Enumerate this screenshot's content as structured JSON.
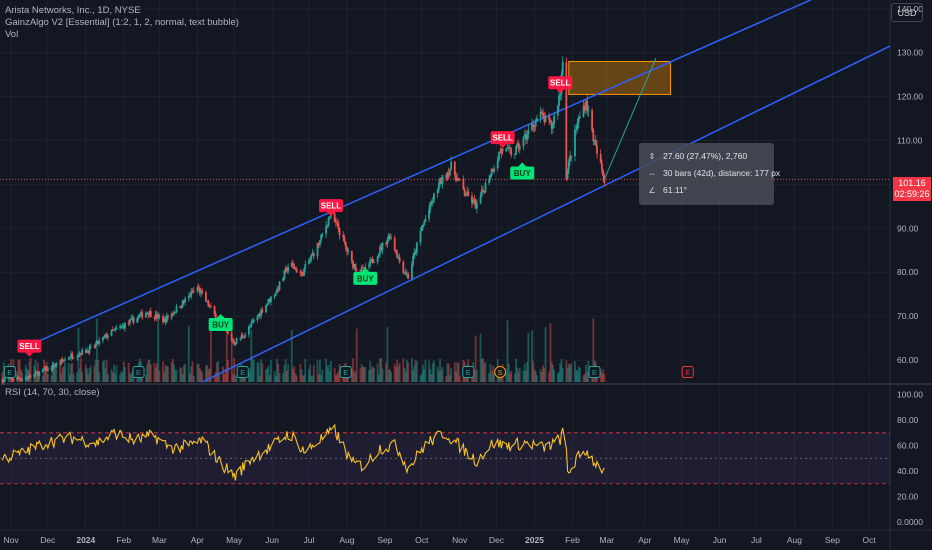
{
  "legend": {
    "title": "Arista Networks, Inc., 1D, NYSE",
    "indicator": "GainzAlgo V2 [Essential] (1:2, 1, 2, normal, text bubble)",
    "volume": "Vol",
    "rsi": "RSI (14, 70, 30, close)"
  },
  "currency_button": "USD",
  "price_tag": {
    "price": "101.16",
    "countdown": "02:59:26",
    "color": "#f23645"
  },
  "measure": {
    "price_change": "27.60 (27.47%), 2,760",
    "bars": "30 bars (42d), distance: 177 px",
    "angle": "61.11°"
  },
  "colors": {
    "background": "#131722",
    "up": "#26a69a",
    "down": "#ef5350",
    "channel": "#2962ff",
    "rsi_line": "#f7c325",
    "sell": "#ff1744",
    "buy": "#00e676"
  },
  "chart_data": [
    {
      "type": "candlestick",
      "y_axis": {
        "ticks": [
          "60.00",
          "70.00",
          "80.00",
          "90.00",
          "100.00",
          "110.00",
          "120.00",
          "130.00",
          "140.00"
        ],
        "ylim": [
          55,
          142
        ]
      },
      "x_axis": {
        "ticks": [
          "Nov",
          "Dec",
          "2024",
          "Feb",
          "Mar",
          "Apr",
          "May",
          "Jun",
          "Jul",
          "Aug",
          "Sep",
          "Oct",
          "Nov",
          "Dec",
          "2025",
          "Feb",
          "Mar",
          "Apr",
          "May",
          "Jun",
          "Jul",
          "Aug",
          "Sep",
          "Oct"
        ],
        "range": [
          "2023-10-23",
          "2025-10-18"
        ]
      },
      "close_path": [
        [
          "2023-10-25",
          55.5
        ],
        [
          "2023-11-15",
          56.0
        ],
        [
          "2023-12-05",
          58.5
        ],
        [
          "2023-12-20",
          61.0
        ],
        [
          "2024-01-05",
          62.5
        ],
        [
          "2024-01-20",
          66.0
        ],
        [
          "2024-02-05",
          68.5
        ],
        [
          "2024-02-20",
          71.0
        ],
        [
          "2024-03-05",
          69.0
        ],
        [
          "2024-03-20",
          73.0
        ],
        [
          "2024-04-01",
          76.5
        ],
        [
          "2024-04-10",
          72.5
        ],
        [
          "2024-04-20",
          68.0
        ],
        [
          "2024-05-01",
          64.0
        ],
        [
          "2024-05-10",
          66.0
        ],
        [
          "2024-05-25",
          72.0
        ],
        [
          "2024-06-05",
          76.0
        ],
        [
          "2024-06-15",
          82.0
        ],
        [
          "2024-06-25",
          79.5
        ],
        [
          "2024-07-10",
          87.0
        ],
        [
          "2024-07-18",
          93.0
        ],
        [
          "2024-07-25",
          90.0
        ],
        [
          "2024-08-05",
          82.0
        ],
        [
          "2024-08-15",
          80.0
        ],
        [
          "2024-08-25",
          84.0
        ],
        [
          "2024-09-05",
          88.5
        ],
        [
          "2024-09-15",
          81.0
        ],
        [
          "2024-09-20",
          79.0
        ],
        [
          "2024-10-01",
          90.0
        ],
        [
          "2024-10-15",
          100.0
        ],
        [
          "2024-10-25",
          104.0
        ],
        [
          "2024-11-05",
          98.0
        ],
        [
          "2024-11-15",
          95.0
        ],
        [
          "2024-11-25",
          102.0
        ],
        [
          "2024-12-05",
          108.0
        ],
        [
          "2024-12-15",
          107.0
        ],
        [
          "2024-12-25",
          111.0
        ],
        [
          "2025-01-05",
          116.0
        ],
        [
          "2025-01-15",
          113.0
        ],
        [
          "2025-01-22",
          121.0
        ],
        [
          "2025-01-25",
          133.0
        ],
        [
          "2025-01-27",
          102.0
        ],
        [
          "2025-02-05",
          114.0
        ],
        [
          "2025-02-12",
          119.0
        ],
        [
          "2025-02-20",
          108.0
        ],
        [
          "2025-02-27",
          101.16
        ]
      ],
      "channel_upper": [
        [
          "2023-11-25",
          64.5
        ],
        [
          "2025-10-18",
          150.0
        ]
      ],
      "channel_lower": [
        [
          "2024-04-05",
          55.0
        ],
        [
          "2025-10-18",
          131.5
        ]
      ],
      "target_box": {
        "from": "2025-01-29",
        "to": "2025-04-22",
        "low": 120.5,
        "high": 128.0
      },
      "measure_line": [
        [
          "2025-02-27",
          101.16
        ],
        [
          "2025-04-10",
          128.76
        ]
      ],
      "last_price_line": 101.16,
      "signals": [
        {
          "label": "SELL",
          "date": "2023-11-16",
          "price": 61.0,
          "kind": "sell"
        },
        {
          "label": "BUY",
          "date": "2024-04-20",
          "price": 70.5,
          "kind": "buy"
        },
        {
          "label": "SELL",
          "date": "2024-07-19",
          "price": 93.0,
          "kind": "sell"
        },
        {
          "label": "BUY",
          "date": "2024-08-16",
          "price": 81.0,
          "kind": "buy"
        },
        {
          "label": "SELL",
          "date": "2024-12-06",
          "price": 108.5,
          "kind": "sell"
        },
        {
          "label": "BUY",
          "date": "2024-12-22",
          "price": 105.0,
          "kind": "buy"
        },
        {
          "label": "SELL",
          "date": "2025-01-22",
          "price": 121.0,
          "kind": "sell"
        }
      ],
      "events": [
        {
          "label": "E",
          "date": "2023-10-31"
        },
        {
          "label": "E",
          "date": "2024-02-13"
        },
        {
          "label": "E",
          "date": "2024-05-08"
        },
        {
          "label": "E",
          "date": "2024-07-31"
        },
        {
          "label": "E",
          "date": "2024-11-08"
        },
        {
          "label": "S",
          "date": "2024-12-04"
        },
        {
          "label": "E",
          "date": "2025-02-19"
        },
        {
          "label": "E",
          "date": "2025-05-06"
        }
      ]
    },
    {
      "type": "line",
      "name": "RSI",
      "y_axis": {
        "ticks": [
          "0.0000",
          "20.00",
          "40.00",
          "60.00",
          "80.00",
          "100.00"
        ],
        "ylim": [
          -4,
          106
        ]
      },
      "levels": {
        "upper": 70,
        "middle": 50,
        "lower": 30
      },
      "rsi_path": [
        [
          "2023-10-25",
          50
        ],
        [
          "2023-11-10",
          54
        ],
        [
          "2023-12-01",
          63
        ],
        [
          "2023-12-20",
          66
        ],
        [
          "2024-01-10",
          62
        ],
        [
          "2024-01-25",
          70
        ],
        [
          "2024-02-10",
          64
        ],
        [
          "2024-02-25",
          68
        ],
        [
          "2024-03-10",
          58
        ],
        [
          "2024-03-25",
          60
        ],
        [
          "2024-04-05",
          64
        ],
        [
          "2024-04-20",
          46
        ],
        [
          "2024-05-02",
          36
        ],
        [
          "2024-05-15",
          50
        ],
        [
          "2024-05-30",
          58
        ],
        [
          "2024-06-15",
          70
        ],
        [
          "2024-06-28",
          55
        ],
        [
          "2024-07-12",
          66
        ],
        [
          "2024-07-22",
          72
        ],
        [
          "2024-08-05",
          46
        ],
        [
          "2024-08-15",
          44
        ],
        [
          "2024-08-28",
          58
        ],
        [
          "2024-09-10",
          60
        ],
        [
          "2024-09-20",
          42
        ],
        [
          "2024-10-05",
          62
        ],
        [
          "2024-10-20",
          70
        ],
        [
          "2024-11-05",
          56
        ],
        [
          "2024-11-15",
          48
        ],
        [
          "2024-11-28",
          62
        ],
        [
          "2024-12-10",
          60
        ],
        [
          "2024-12-25",
          62
        ],
        [
          "2025-01-10",
          58
        ],
        [
          "2025-01-22",
          65
        ],
        [
          "2025-01-26",
          74
        ],
        [
          "2025-01-28",
          38
        ],
        [
          "2025-02-05",
          50
        ],
        [
          "2025-02-12",
          56
        ],
        [
          "2025-02-20",
          46
        ],
        [
          "2025-02-27",
          40
        ]
      ]
    }
  ]
}
